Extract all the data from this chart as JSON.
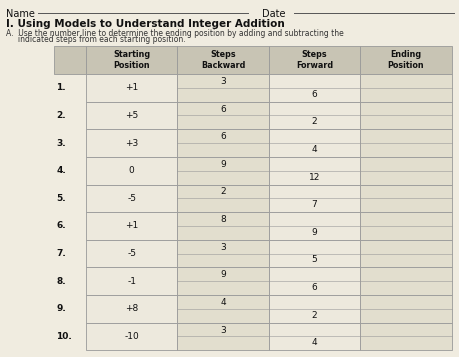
{
  "title_line1": "I. Using Models to Understand Integer Addition",
  "title_line2a": "A.  Use the number line to determine the ending position by adding and subtracting the",
  "title_line2b": "     indicated steps from each starting position.",
  "name_label": "Name",
  "date_label": "Date",
  "col_headers": [
    "Starting\nPosition",
    "Steps\nBackward",
    "Steps\nForward",
    "Ending\nPosition"
  ],
  "row_labels": [
    "1.",
    "2.",
    "3.",
    "4.",
    "5.",
    "6.",
    "7.",
    "8.",
    "9.",
    "10."
  ],
  "starting_positions": [
    "+1",
    "+5",
    "+3",
    "0",
    "-5",
    "+1",
    "-5",
    "-1",
    "+8",
    "-10"
  ],
  "steps_backward": [
    "3",
    "6",
    "6",
    "9",
    "2",
    "8",
    "3",
    "9",
    "4",
    "3"
  ],
  "steps_forward": [
    "6",
    "2",
    "4",
    "12",
    "7",
    "9",
    "5",
    "6",
    "2",
    "4"
  ],
  "bg_color": "#f0ece0",
  "header_bg": "#c8c4b4",
  "cell_bg_light": "#ede9dd",
  "cell_bg_dark": "#e2dece",
  "line_color": "#999999",
  "text_dark": "#111111",
  "text_mid": "#333333",
  "text_light": "#555555"
}
